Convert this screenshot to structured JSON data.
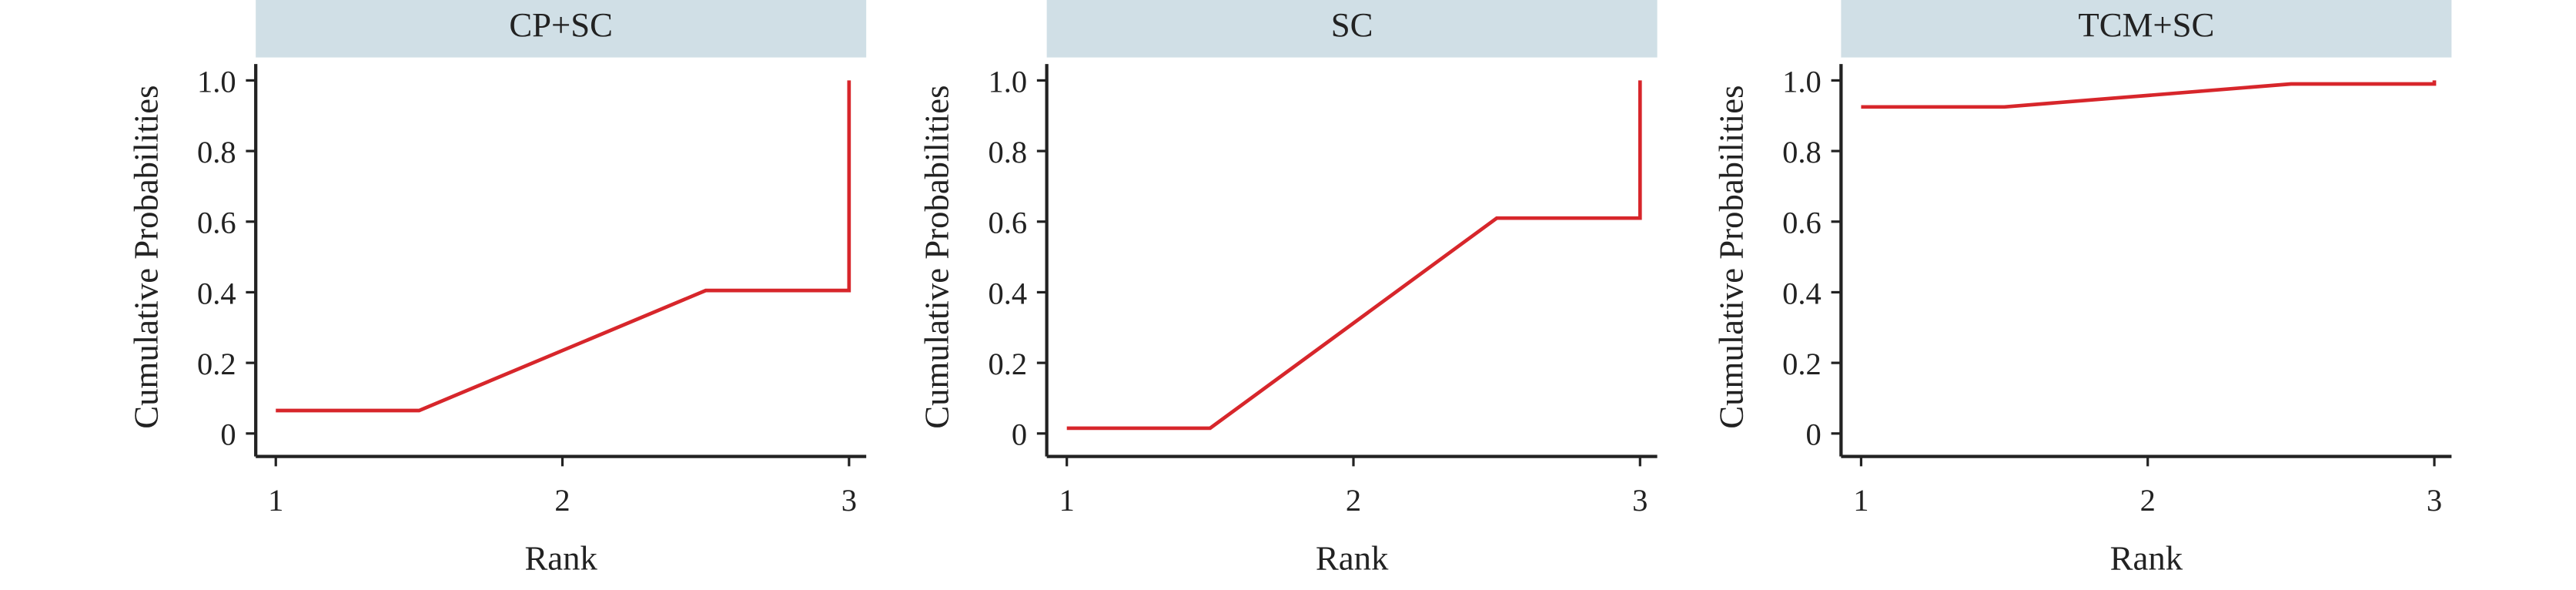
{
  "chart_data": [
    {
      "type": "line",
      "title": "CP+SC",
      "xlabel": "Rank",
      "ylabel": "Cumulative Probabilities",
      "x": [
        1,
        1.5,
        2.5,
        3,
        3
      ],
      "series": [
        {
          "color": "#d7262b",
          "values": [
            0.065,
            0.065,
            0.405,
            0.405,
            1.0
          ]
        }
      ],
      "xlim": [
        0.93,
        3.06
      ],
      "ylim": [
        -0.065,
        1.065
      ],
      "xticks": [
        1,
        2,
        3
      ],
      "yticks": [
        0,
        0.2,
        0.4,
        0.6,
        0.8,
        {
          "value": 1,
          "label": "1.0"
        }
      ]
    },
    {
      "type": "line",
      "title": "SC",
      "xlabel": "Rank",
      "ylabel": "Cumulative Probabilities",
      "x": [
        1,
        1.5,
        2.5,
        3,
        3
      ],
      "series": [
        {
          "color": "#d7262b",
          "values": [
            0.015,
            0.015,
            0.61,
            0.61,
            1.0
          ]
        }
      ],
      "xlim": [
        0.93,
        3.06
      ],
      "ylim": [
        -0.065,
        1.065
      ],
      "xticks": [
        1,
        2,
        3
      ],
      "yticks": [
        0,
        0.2,
        0.4,
        0.6,
        0.8,
        {
          "value": 1,
          "label": "1.0"
        }
      ]
    },
    {
      "type": "line",
      "title": "TCM+SC",
      "xlabel": "Rank",
      "ylabel": "Cumulative Probabilities",
      "x": [
        1,
        1.5,
        2.5,
        3,
        3
      ],
      "series": [
        {
          "color": "#d7262b",
          "values": [
            0.925,
            0.925,
            0.99,
            0.99,
            1.0
          ]
        }
      ],
      "xlim": [
        0.93,
        3.06
      ],
      "ylim": [
        -0.065,
        1.065
      ],
      "xticks": [
        1,
        2,
        3
      ],
      "yticks": [
        0,
        0.2,
        0.4,
        0.6,
        0.8,
        {
          "value": 1,
          "label": "1.0"
        }
      ]
    }
  ]
}
